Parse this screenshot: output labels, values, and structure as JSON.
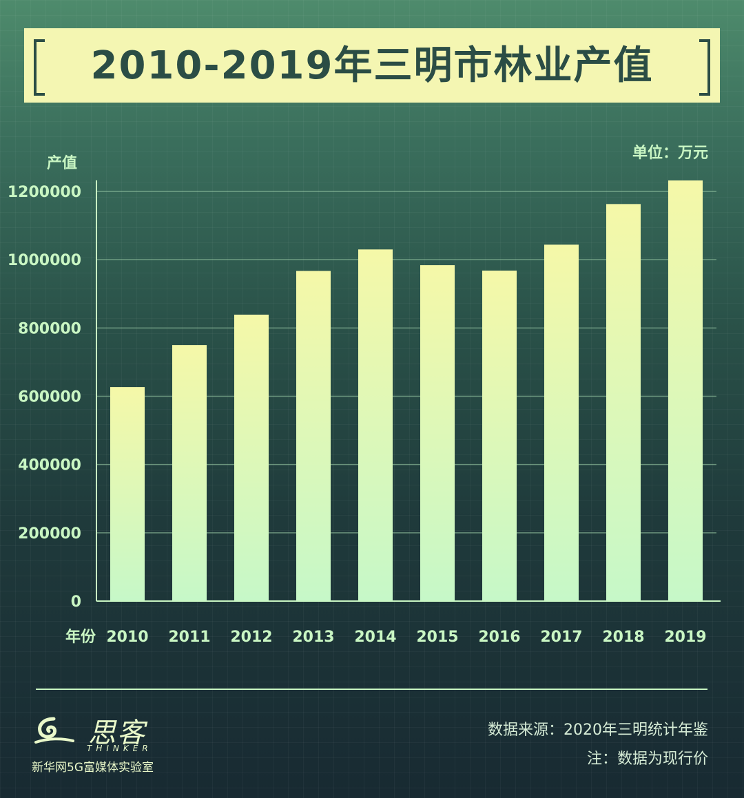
{
  "title": "2010-2019年三明市林业产值",
  "unit_label": "单位：万元",
  "footer": {
    "logo_name": "思客",
    "logo_en": "THINKER",
    "logo_sub": "新华网5G富媒体实验室",
    "source": "数据来源：2020年三明统计年鉴",
    "note": "注：数据为现行价"
  },
  "colors": {
    "bar_top": "#f5f8a8",
    "bar_bottom": "#c6f8c8",
    "text_light": "#c9f6c3",
    "title_bg": "#f4f6b2",
    "title_text": "#2b4d45"
  },
  "chart_data": {
    "type": "bar",
    "ylabel": "产值",
    "xlabel": "年份",
    "categories": [
      "2010",
      "2011",
      "2012",
      "2013",
      "2014",
      "2015",
      "2016",
      "2017",
      "2018",
      "2019"
    ],
    "values": [
      627000,
      750000,
      839000,
      967000,
      1030000,
      984000,
      968000,
      1044000,
      1163000,
      1232000
    ],
    "ylim": [
      0,
      1200000
    ],
    "yticks": [
      0,
      200000,
      400000,
      600000,
      800000,
      1000000,
      1200000
    ],
    "grid": true
  }
}
